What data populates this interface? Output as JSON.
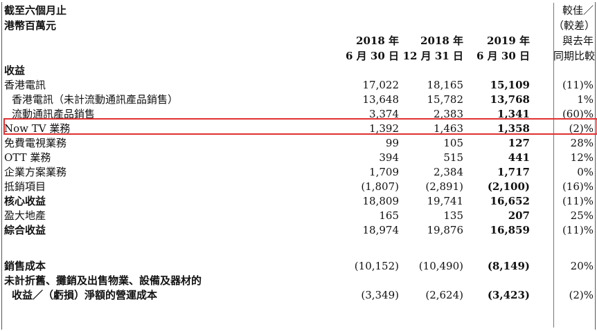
{
  "header": {
    "left_line1": "截至六個月止",
    "left_line2": "港幣百萬元",
    "col1_line1": "2018 年",
    "col1_line2": "6 月 30 日",
    "col2_line1": "2018 年",
    "col2_line2": "12 月 31 日",
    "col3_line1": "2019 年",
    "col3_line2": "6 月 30 日",
    "cmp_line1": "較佳／",
    "cmp_line2": "（較差）",
    "cmp_line3": "與去年",
    "cmp_line4": "同期比較"
  },
  "section_revenue": "收益",
  "rows": [
    {
      "label": "香港電訊",
      "v1": "17,022",
      "v2": "18,165",
      "v3": "15,109",
      "cmp": "(11)%"
    },
    {
      "label": "香港電訊（未計流動通訊產品銷售）",
      "v1": "13,648",
      "v2": "15,782",
      "v3": "13,768",
      "cmp": "1%"
    },
    {
      "label": "流動通訊產品銷售",
      "v1": "3,374",
      "v2": "2,383",
      "v3": "1,341",
      "cmp": "(60)%"
    },
    {
      "label": "Now TV 業務",
      "v1": "1,392",
      "v2": "1,463",
      "v3": "1,358",
      "cmp": "(2)%"
    },
    {
      "label": "免費電視業務",
      "v1": "99",
      "v2": "105",
      "v3": "127",
      "cmp": "28%"
    },
    {
      "label": "OTT 業務",
      "v1": "394",
      "v2": "515",
      "v3": "441",
      "cmp": "12%"
    },
    {
      "label": "企業方案業務",
      "v1": "1,709",
      "v2": "2,384",
      "v3": "1,717",
      "cmp": "0%"
    },
    {
      "label": "抵銷項目",
      "v1": "(1,807)",
      "v2": "(2,891)",
      "v3": "(2,100)",
      "cmp": "(16)%"
    },
    {
      "label": "核心收益",
      "v1": "18,809",
      "v2": "19,741",
      "v3": "16,652",
      "cmp": "(11)%"
    },
    {
      "label": "盈大地產",
      "v1": "165",
      "v2": "135",
      "v3": "207",
      "cmp": "25%"
    },
    {
      "label": "綜合收益",
      "v1": "18,974",
      "v2": "19,876",
      "v3": "16,859",
      "cmp": "(11)%"
    }
  ],
  "cost_row": {
    "label": "銷售成本",
    "v1": "(10,152)",
    "v2": "(10,490)",
    "v3": "(8,149)",
    "cmp": "20%"
  },
  "opex_row": {
    "label_line1": "未計折舊、攤銷及出售物業、設備及器材的",
    "label_line2": "收益／（虧損）淨額的營運成本",
    "v1": "(3,349)",
    "v2": "(2,624)",
    "v3": "(3,423)",
    "cmp": "(2)%"
  },
  "highlight_color": "#e03030"
}
